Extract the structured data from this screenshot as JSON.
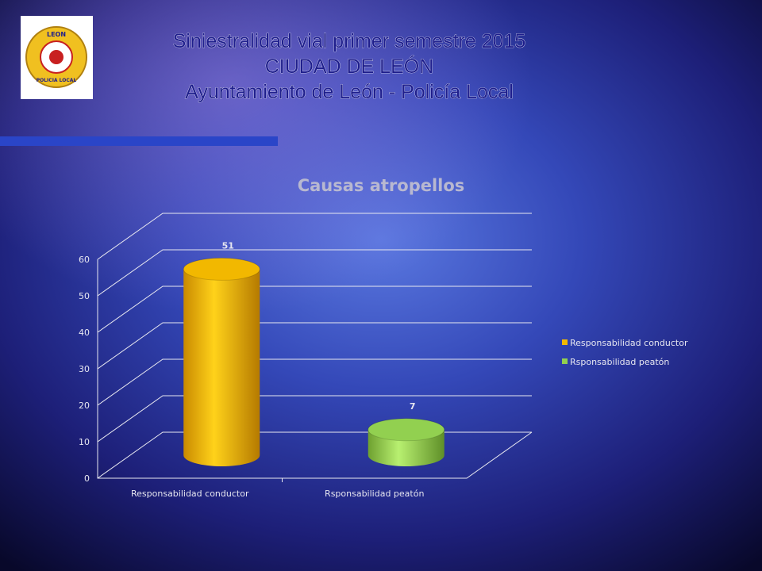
{
  "header": {
    "title_lines": [
      "Siniestralidad vial primer semestre 2015",
      "CIUDAD DE LEÓN",
      "Ayuntamiento de León - Policía Local"
    ]
  },
  "logo": {
    "top": "LEON",
    "bottom": "POLICIA LOCAL"
  },
  "chart_data": {
    "type": "bar",
    "title": "Causas atropellos",
    "categories": [
      "Responsabilidad conductor",
      "Rsponsabilidad peatón"
    ],
    "values": [
      51,
      7
    ],
    "colors": [
      "#f2b800",
      "#92d050"
    ],
    "ylim": [
      0,
      60
    ],
    "yticks": [
      0,
      10,
      20,
      30,
      40,
      50,
      60
    ],
    "grid": true,
    "legend": "right"
  }
}
